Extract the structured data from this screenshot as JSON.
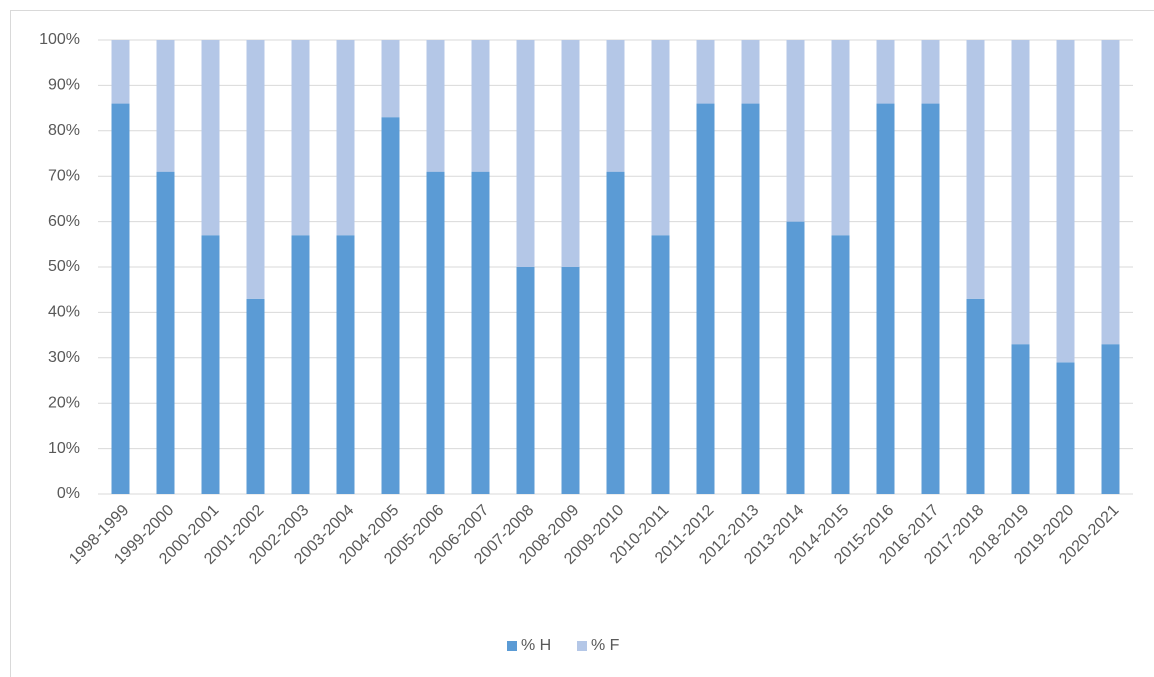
{
  "chart_data": {
    "type": "stacked_bar",
    "categories": [
      "1998-1999",
      "1999-2000",
      "2000-2001",
      "2001-2002",
      "2002-2003",
      "2003-2004",
      "2004-2005",
      "2005-2006",
      "2006-2007",
      "2007-2008",
      "2008-2009",
      "2009-2010",
      "2010-2011",
      "2011-2012",
      "2012-2013",
      "2013-2014",
      "2014-2015",
      "2015-2016",
      "2016-2017",
      "2017-2018",
      "2018-2019",
      "2019-2020",
      "2020-2021"
    ],
    "series": [
      {
        "name": "% H",
        "color": "#5b9bd5",
        "values": [
          86,
          71,
          57,
          43,
          57,
          57,
          83,
          71,
          71,
          50,
          50,
          71,
          57,
          86,
          86,
          60,
          57,
          86,
          86,
          43,
          33,
          29,
          33
        ]
      },
      {
        "name": "% F",
        "color": "#b4c7e7",
        "values": [
          14,
          29,
          43,
          57,
          43,
          43,
          17,
          29,
          29,
          50,
          50,
          29,
          43,
          14,
          14,
          40,
          43,
          14,
          14,
          57,
          67,
          71,
          67
        ]
      }
    ],
    "ylim": [
      0,
      100
    ],
    "yticks": [
      {
        "value": 0,
        "label": "0%"
      },
      {
        "value": 10,
        "label": "10%"
      },
      {
        "value": 20,
        "label": "20%"
      },
      {
        "value": 30,
        "label": "30%"
      },
      {
        "value": 40,
        "label": "40%"
      },
      {
        "value": 50,
        "label": "50%"
      },
      {
        "value": 60,
        "label": "60%"
      },
      {
        "value": 70,
        "label": "70%"
      },
      {
        "value": 80,
        "label": "80%"
      },
      {
        "value": 90,
        "label": "90%"
      },
      {
        "value": 100,
        "label": "100%"
      }
    ],
    "grid": true,
    "legend": "bottom"
  }
}
